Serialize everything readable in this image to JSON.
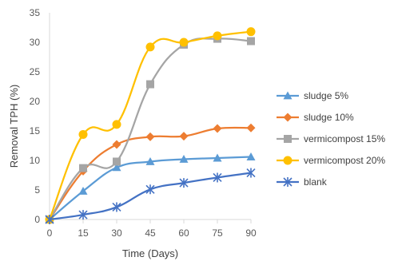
{
  "chart_data": {
    "type": "line",
    "title": "",
    "xlabel": "Time (Days)",
    "ylabel": "Removal TPH (%)",
    "x": [
      0,
      15,
      30,
      45,
      60,
      75,
      90
    ],
    "xlim": [
      0,
      90
    ],
    "ylim": [
      0,
      35
    ],
    "x_ticks": [
      "0",
      "15",
      "30",
      "45",
      "60",
      "75",
      "90"
    ],
    "y_ticks": [
      "0",
      "5",
      "10",
      "15",
      "20",
      "25",
      "30",
      "35"
    ],
    "grid": false,
    "legend_position": "right",
    "smooth": true,
    "series": [
      {
        "name": "sludge 5%",
        "color": "#5b9bd5",
        "marker": "triangle",
        "values": [
          0,
          4.8,
          8.8,
          9.8,
          10.2,
          10.4,
          10.6
        ]
      },
      {
        "name": "sludge 10%",
        "color": "#ed7d31",
        "marker": "diamond",
        "values": [
          0,
          8.2,
          12.7,
          14.0,
          14.1,
          15.4,
          15.5
        ]
      },
      {
        "name": "vermicompost 15%",
        "color": "#a5a5a5",
        "marker": "square",
        "values": [
          0,
          8.7,
          9.8,
          22.9,
          29.6,
          30.6,
          30.2
        ]
      },
      {
        "name": "vermicompost 20%",
        "color": "#ffc000",
        "marker": "circle",
        "values": [
          0,
          14.4,
          16.1,
          29.2,
          30.0,
          31.1,
          31.8
        ]
      },
      {
        "name": "blank",
        "color": "#4472c4",
        "marker": "asterisk",
        "values": [
          0,
          0.8,
          2.1,
          5.1,
          6.2,
          7.1,
          7.9
        ]
      }
    ]
  }
}
